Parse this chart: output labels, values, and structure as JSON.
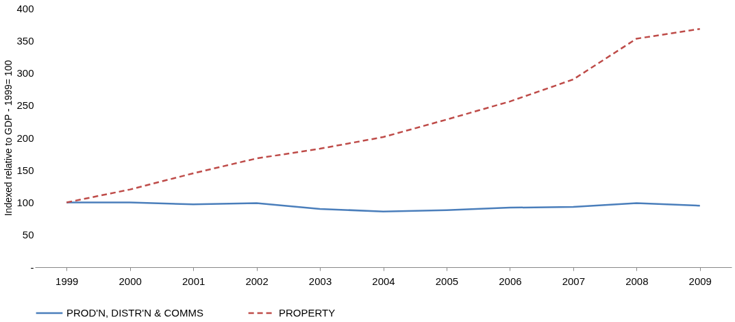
{
  "chart_data": {
    "type": "line",
    "ylabel": "Indexed relative to GDP - 1999= 100",
    "categories": [
      "1999",
      "2000",
      "2001",
      "2002",
      "2003",
      "2004",
      "2005",
      "2006",
      "2007",
      "2008",
      "2009"
    ],
    "series": [
      {
        "name": "PROD'N, DISTR'N & COMMS",
        "color": "#4a7ebb",
        "line_style": "solid",
        "values": [
          100,
          100,
          97,
          99,
          90,
          86,
          88,
          92,
          93,
          99,
          95
        ]
      },
      {
        "name": "PROPERTY",
        "color": "#be4b48",
        "line_style": "dashed",
        "values": [
          100,
          120,
          145,
          168,
          183,
          201,
          228,
          256,
          290,
          353,
          368
        ]
      }
    ],
    "ylim": [
      0,
      400
    ],
    "yticks": [
      {
        "value": 0,
        "label": "-"
      },
      50,
      100,
      150,
      200,
      250,
      300,
      350,
      400
    ],
    "grid": false,
    "legend": "bottom"
  }
}
